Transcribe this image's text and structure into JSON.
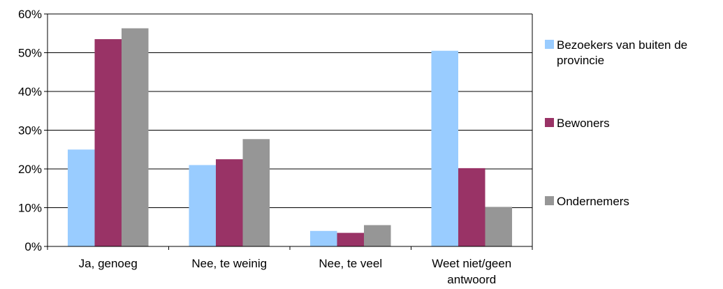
{
  "chart_data": {
    "type": "bar",
    "title": "",
    "xlabel": "",
    "ylabel": "",
    "categories": [
      [
        "Ja, genoeg"
      ],
      [
        "Nee, te weinig"
      ],
      [
        "Nee, te veel"
      ],
      [
        "Weet niet/geen",
        "antwoord"
      ]
    ],
    "series": [
      {
        "name": "Bezoekers van buiten de provincie",
        "legend_lines": [
          "Bezoekers van buiten de",
          "provincie"
        ],
        "color": "#99CCFF",
        "values": [
          25,
          21,
          4,
          50.5
        ]
      },
      {
        "name": "Bewoners",
        "legend_lines": [
          "Bewoners"
        ],
        "color": "#993366",
        "values": [
          53.5,
          22.5,
          3.5,
          20.2
        ]
      },
      {
        "name": "Ondernemers",
        "legend_lines": [
          "Ondernemers"
        ],
        "color": "#969696",
        "values": [
          56.3,
          27.7,
          5.5,
          10.2
        ]
      }
    ],
    "ylim": [
      0,
      60
    ],
    "yticks": [
      "0%",
      "10%",
      "20%",
      "30%",
      "40%",
      "50%",
      "60%"
    ],
    "gridlines": true,
    "legend_position": "right"
  }
}
